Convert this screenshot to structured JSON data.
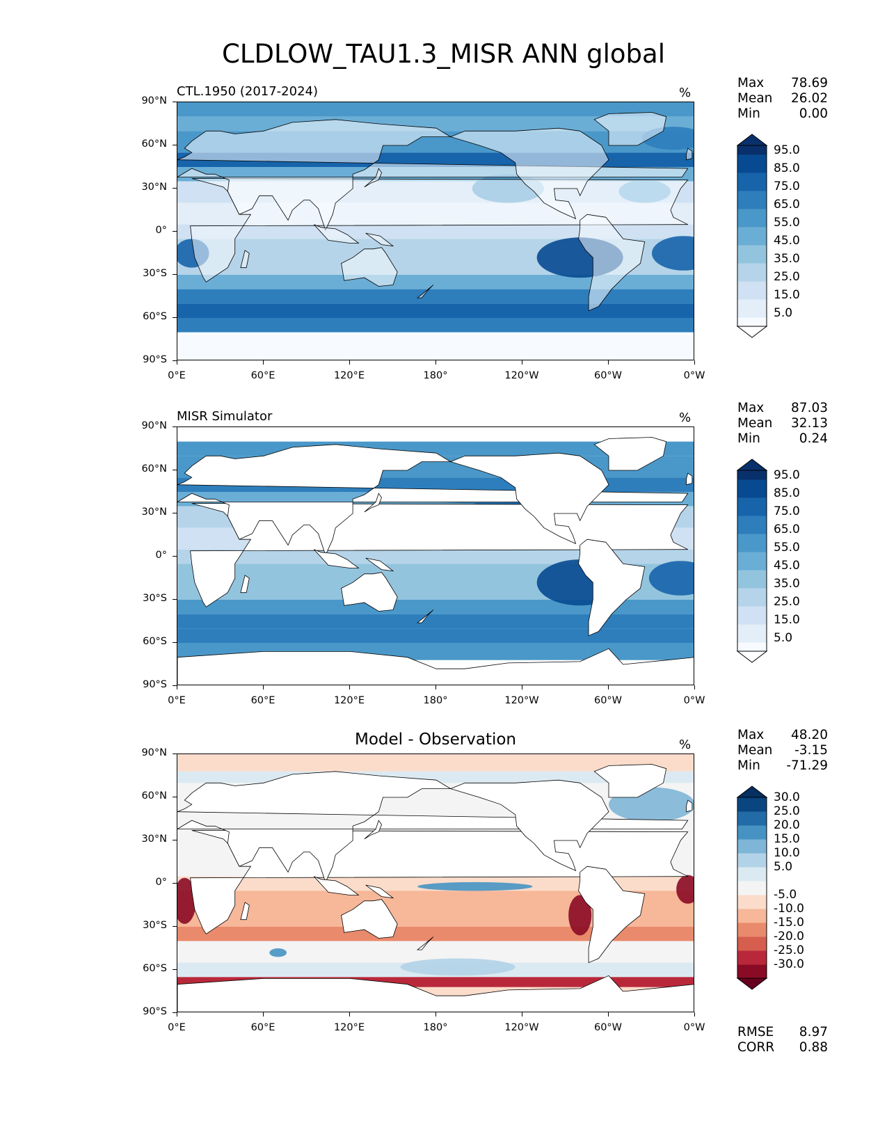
{
  "title": "CLDLOW_TAU1.3_MISR ANN global",
  "chart_data": [
    {
      "type": "heatmap",
      "title": "CTL.1950 (2017-2024)",
      "units": "%",
      "stats": {
        "max": "78.69",
        "mean": "26.02",
        "min": "0.00"
      },
      "stat_labels": {
        "max": "Max",
        "mean": "Mean",
        "min": "Min"
      },
      "xticks": [
        "0°E",
        "60°E",
        "120°E",
        "180°",
        "120°W",
        "60°W",
        "0°W"
      ],
      "yticks": [
        "90°N",
        "60°N",
        "30°N",
        "0°",
        "30°S",
        "60°S",
        "90°S"
      ],
      "xlim": [
        0,
        360
      ],
      "ylim": [
        -90,
        90
      ],
      "colorbar": {
        "levels": [
          0,
          5,
          10,
          15,
          20,
          25,
          30,
          35,
          40,
          45,
          50,
          55,
          60,
          65,
          70,
          75,
          80,
          85,
          90,
          95,
          100
        ],
        "tick_labels": [
          "5.0",
          "15.0",
          "25.0",
          "35.0",
          "45.0",
          "55.0",
          "65.0",
          "75.0",
          "85.0",
          "95.0"
        ],
        "extend": "both",
        "colormap": "Blues"
      }
    },
    {
      "type": "heatmap",
      "title": "MISR Simulator",
      "units": "%",
      "stats": {
        "max": "87.03",
        "mean": "32.13",
        "min": "0.24"
      },
      "stat_labels": {
        "max": "Max",
        "mean": "Mean",
        "min": "Min"
      },
      "xticks": [
        "0°E",
        "60°E",
        "120°E",
        "180°",
        "120°W",
        "60°W",
        "0°W"
      ],
      "yticks": [
        "90°N",
        "60°N",
        "30°N",
        "0°",
        "30°S",
        "60°S",
        "90°S"
      ],
      "xlim": [
        0,
        360
      ],
      "ylim": [
        -90,
        90
      ],
      "colorbar": {
        "levels": [
          0,
          5,
          10,
          15,
          20,
          25,
          30,
          35,
          40,
          45,
          50,
          55,
          60,
          65,
          70,
          75,
          80,
          85,
          90,
          95,
          100
        ],
        "tick_labels": [
          "5.0",
          "15.0",
          "25.0",
          "35.0",
          "45.0",
          "55.0",
          "65.0",
          "75.0",
          "85.0",
          "95.0"
        ],
        "extend": "both",
        "colormap": "Blues"
      }
    },
    {
      "type": "heatmap",
      "title": "Model - Observation",
      "units": "%",
      "stats": {
        "max": "48.20",
        "mean": "-3.15",
        "min": "-71.29"
      },
      "stat_labels": {
        "max": "Max",
        "mean": "Mean",
        "min": "Min"
      },
      "extra_stats": {
        "rmse": "8.97",
        "corr": "0.88"
      },
      "extra_stat_labels": {
        "rmse": "RMSE",
        "corr": "CORR"
      },
      "xticks": [
        "0°E",
        "60°E",
        "120°E",
        "180°",
        "120°W",
        "60°W",
        "0°W"
      ],
      "yticks": [
        "90°N",
        "60°N",
        "30°N",
        "0°",
        "30°S",
        "60°S",
        "90°S"
      ],
      "xlim": [
        0,
        360
      ],
      "ylim": [
        -90,
        90
      ],
      "colorbar": {
        "levels": [
          -35,
          -30,
          -25,
          -20,
          -15,
          -10,
          -5,
          5,
          10,
          15,
          20,
          25,
          30,
          35
        ],
        "tick_labels": [
          "-30.0",
          "-25.0",
          "-20.0",
          "-15.0",
          "-10.0",
          "-5.0",
          "5.0",
          "10.0",
          "15.0",
          "20.0",
          "25.0",
          "30.0"
        ],
        "extend": "both",
        "colormap": "RdBu"
      }
    }
  ]
}
